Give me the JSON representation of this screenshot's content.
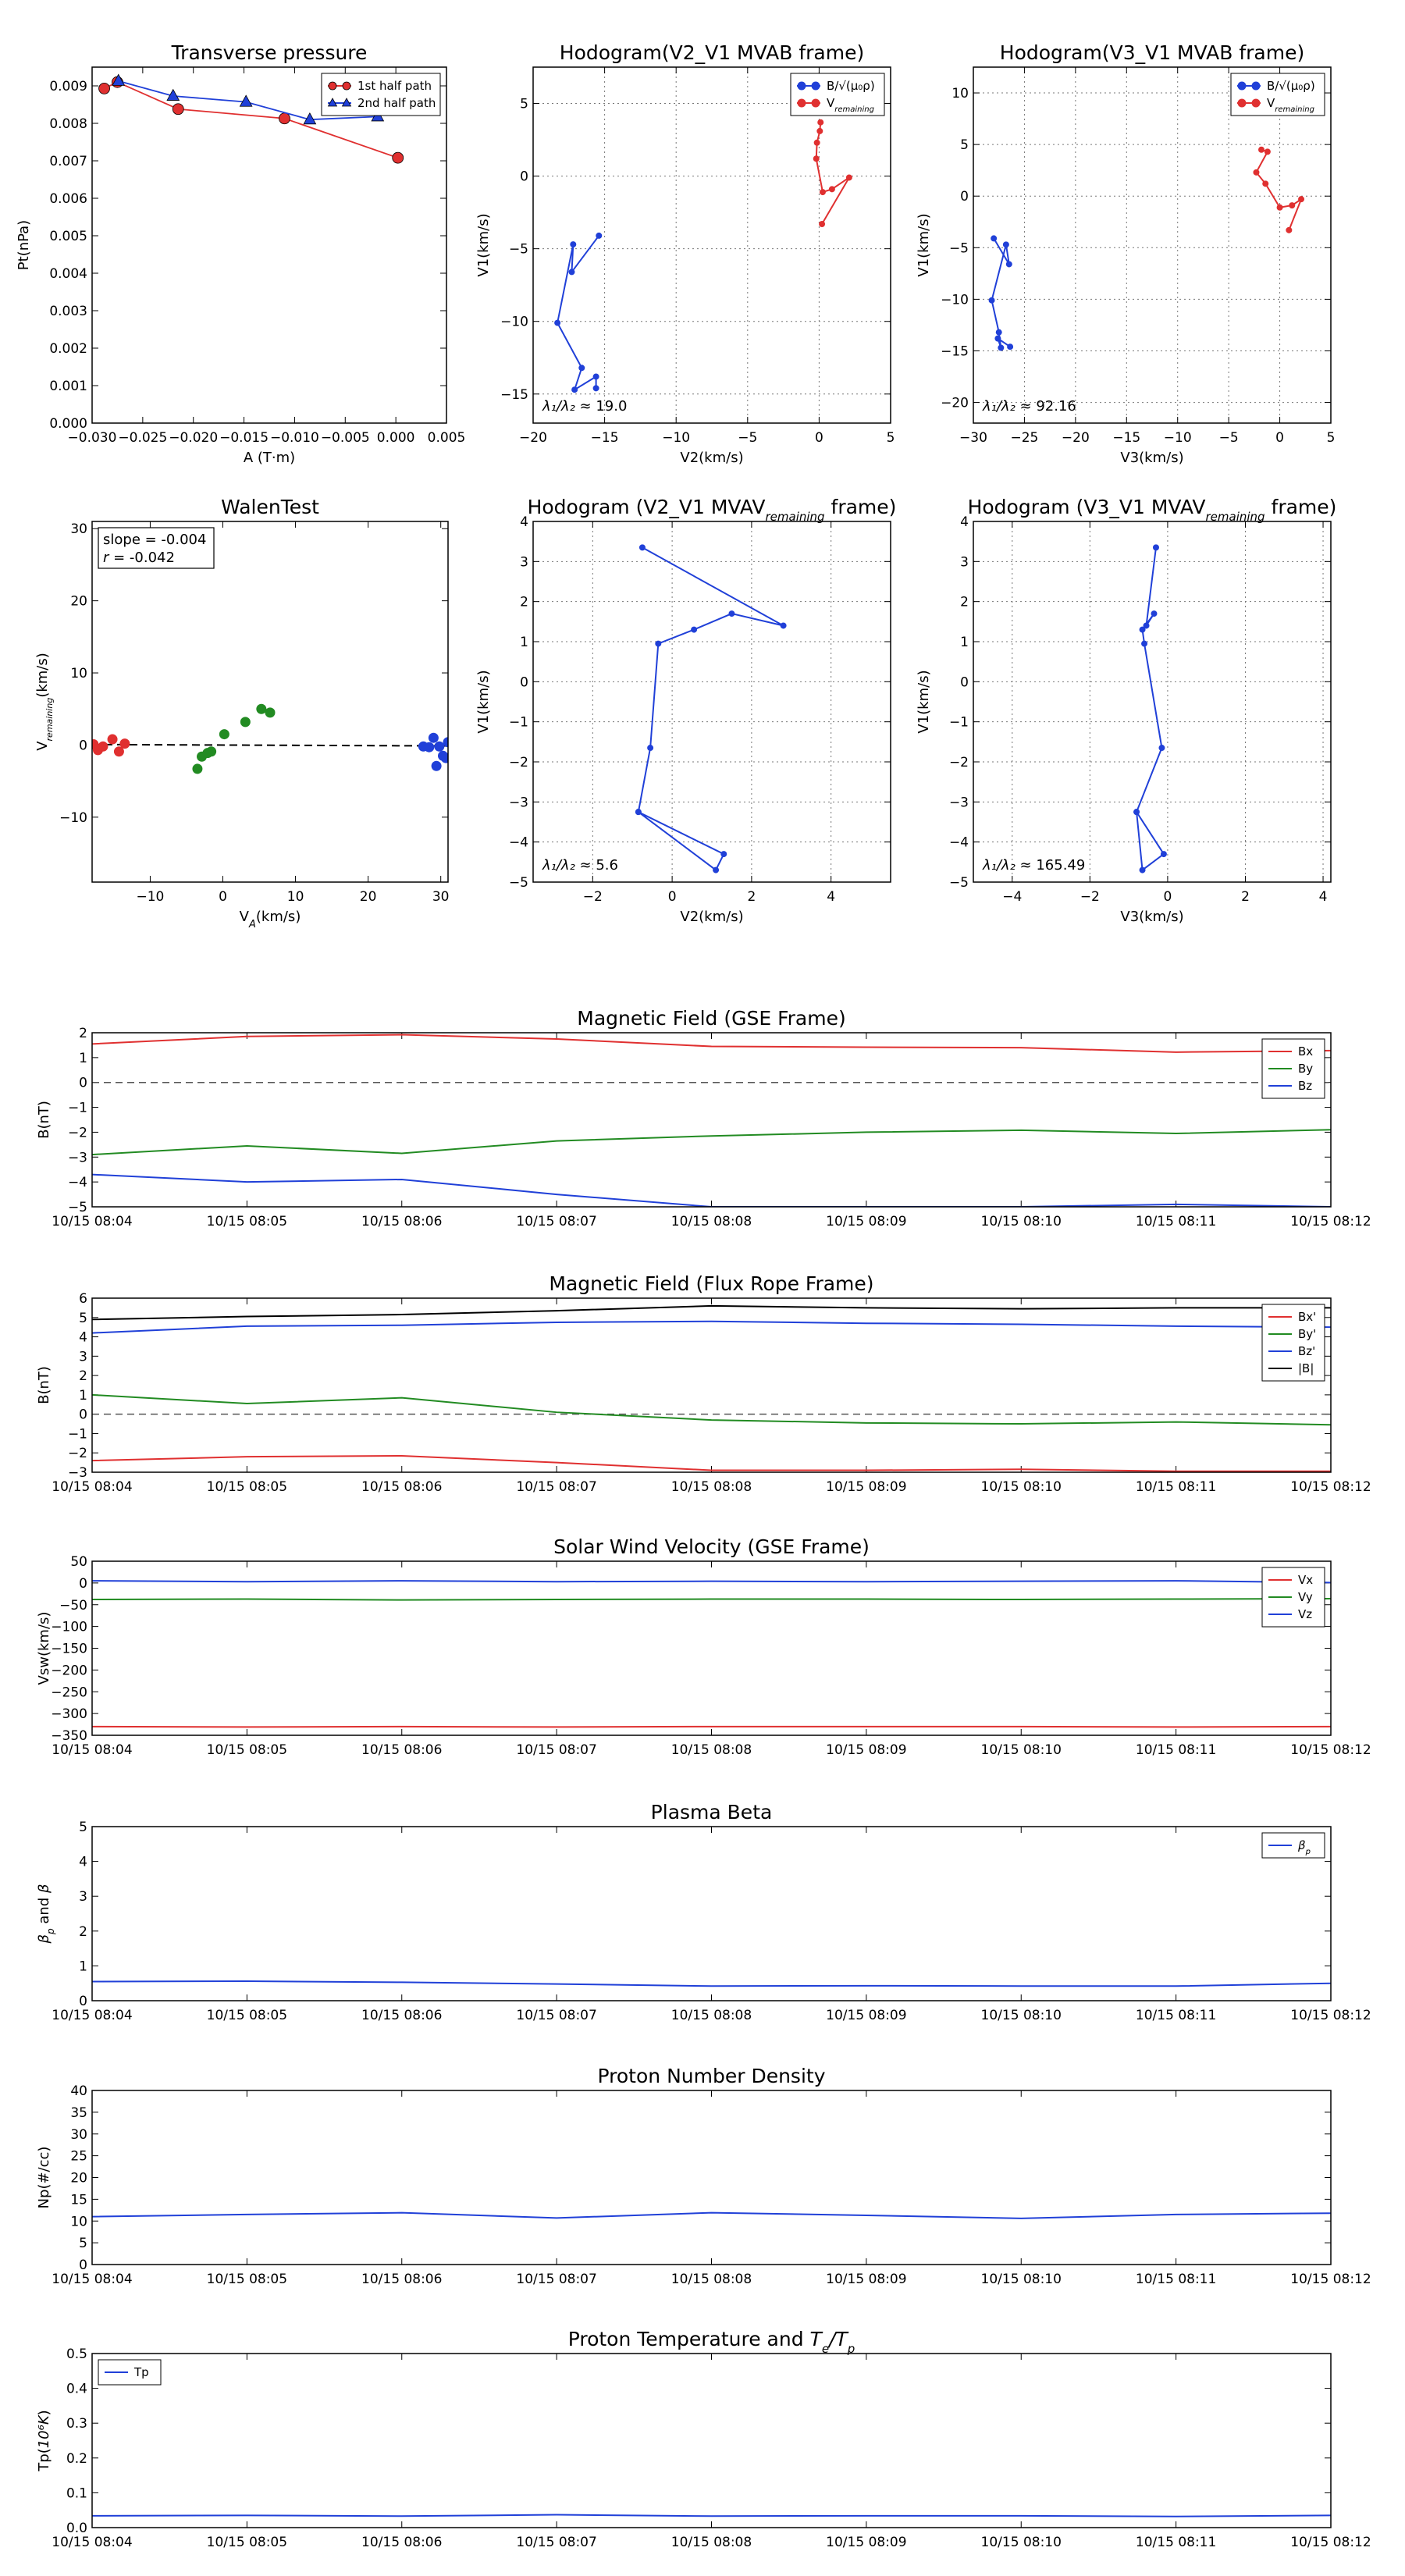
{
  "figure": {
    "background": "#ffffff"
  },
  "chart_data": [
    {
      "id": "tp",
      "type": "scatter",
      "title": "Transverse pressure",
      "xlabel": "A (T·m)",
      "ylabel": "Pt(nPa)",
      "xlim": [
        -0.03,
        0.005
      ],
      "ylim": [
        0,
        0.0095
      ],
      "xticks": [
        -0.03,
        -0.025,
        -0.02,
        -0.015,
        -0.01,
        -0.005,
        0.0,
        0.005
      ],
      "xticklabels": [
        "−0.030",
        "−0.025",
        "−0.020",
        "−0.015",
        "−0.010",
        "−0.005",
        "0.000",
        "0.005"
      ],
      "yticks": [
        0,
        0.001,
        0.002,
        0.003,
        0.004,
        0.005,
        0.006,
        0.007,
        0.008,
        0.009
      ],
      "yticklabels": [
        "0.000",
        "0.001",
        "0.002",
        "0.003",
        "0.004",
        "0.005",
        "0.006",
        "0.007",
        "0.008",
        "0.009"
      ],
      "grid": false,
      "legend": "top-right",
      "series": [
        {
          "name": "1st half path",
          "color": "#e03030",
          "marker": "circle",
          "x": [
            -0.0288,
            -0.0275,
            -0.0215,
            -0.011,
            0.0002
          ],
          "y": [
            0.00893,
            0.0091,
            0.00838,
            0.00813,
            0.00708
          ]
        },
        {
          "name": "2nd half path",
          "color": "#2040d8",
          "marker": "triangle",
          "x": [
            -0.0274,
            -0.022,
            -0.0148,
            -0.0085,
            -0.0018
          ],
          "y": [
            0.00913,
            0.00873,
            0.00857,
            0.0081,
            0.00818
          ]
        }
      ]
    },
    {
      "id": "hg1",
      "type": "line",
      "title": "Hodogram(V2_V1 MVAB frame)",
      "xlabel": "V2(km/s)",
      "ylabel": "V1(km/s)",
      "xlim": [
        -20,
        5
      ],
      "ylim": [
        -17,
        7.5
      ],
      "xticks": [
        -20,
        -15,
        -10,
        -5,
        0,
        5
      ],
      "xticklabels": [
        "−20",
        "−15",
        "−10",
        "−5",
        "0",
        "5"
      ],
      "yticks": [
        -15,
        -10,
        -5,
        0,
        5
      ],
      "yticklabels": [
        "−15",
        "−10",
        "−5",
        "0",
        "5"
      ],
      "grid": true,
      "legend": "top-right",
      "annotation": "λ₁/λ₂ ≈ 19.0",
      "series": [
        {
          "name": "B/√(μ₀ρ)",
          "color": "#2040d8",
          "x": [
            -15.4,
            -17.3,
            -17.2,
            -18.3,
            -16.6,
            -17.1,
            -15.6,
            -15.6
          ],
          "y": [
            -4.1,
            -6.6,
            -4.7,
            -10.1,
            -13.2,
            -14.7,
            -13.8,
            -14.6
          ]
        },
        {
          "name": "V_remaining",
          "color": "#e03030",
          "x": [
            0.1,
            0.05,
            -0.15,
            -0.2,
            0.25,
            0.9,
            2.1,
            0.2
          ],
          "y": [
            3.7,
            3.1,
            2.3,
            1.2,
            -1.1,
            -0.9,
            -0.1,
            -3.3
          ]
        }
      ]
    },
    {
      "id": "hg2",
      "type": "line",
      "title": "Hodogram(V3_V1 MVAB frame)",
      "xlabel": "V3(km/s)",
      "ylabel": "V1(km/s)",
      "xlim": [
        -30,
        5
      ],
      "ylim": [
        -22,
        12.5
      ],
      "xticks": [
        -30,
        -25,
        -20,
        -15,
        -10,
        -5,
        0,
        5
      ],
      "xticklabels": [
        "−30",
        "−25",
        "−20",
        "−15",
        "−10",
        "−5",
        "0",
        "5"
      ],
      "yticks": [
        -20,
        -15,
        -10,
        -5,
        0,
        5,
        10
      ],
      "yticklabels": [
        "−20",
        "−15",
        "−10",
        "−5",
        "0",
        "5",
        "10"
      ],
      "grid": true,
      "legend": "top-right",
      "annotation": "λ₁/λ₂ ≈ 92.16",
      "series": [
        {
          "name": "B/√(μ₀ρ)",
          "color": "#2040d8",
          "x": [
            -28.0,
            -26.5,
            -26.8,
            -28.2,
            -27.5,
            -27.3,
            -27.6,
            -26.4
          ],
          "y": [
            -4.1,
            -6.6,
            -4.7,
            -10.1,
            -13.2,
            -14.7,
            -13.8,
            -14.6
          ]
        },
        {
          "name": "V_remaining",
          "color": "#e03030",
          "x": [
            -1.8,
            -1.2,
            -2.3,
            -1.4,
            0.0,
            1.2,
            2.1,
            0.9
          ],
          "y": [
            4.5,
            4.3,
            2.3,
            1.2,
            -1.1,
            -0.9,
            -0.3,
            -3.3
          ]
        }
      ]
    },
    {
      "id": "walen",
      "type": "scatter",
      "title": "WalenTest",
      "xlabel": "V_A(km/s)",
      "ylabel": "V_remaining(km/s)",
      "xlim": [
        -18,
        31
      ],
      "ylim": [
        -19,
        31
      ],
      "xticks": [
        -10,
        0,
        10,
        20,
        30
      ],
      "xticklabels": [
        "−10",
        "0",
        "10",
        "20",
        "30"
      ],
      "yticks": [
        -10,
        0,
        10,
        20,
        30
      ],
      "yticklabels": [
        "−10",
        "0",
        "10",
        "20",
        "30"
      ],
      "grid": false,
      "annotation": [
        "slope = -0.004",
        "r = -0.042"
      ],
      "fit": {
        "slope": -0.004,
        "intercept": 0
      },
      "series": [
        {
          "color": "#e03030",
          "x": [
            -17.8,
            -17.2,
            -16.5,
            -15.2,
            -14.3,
            -13.5
          ],
          "y": [
            0.1,
            -0.7,
            -0.2,
            0.8,
            -0.9,
            0.2
          ]
        },
        {
          "color": "#228b22",
          "x": [
            -3.5,
            -2.9,
            -2.1,
            -1.6,
            0.2,
            3.1,
            5.3,
            6.5
          ],
          "y": [
            -3.3,
            -1.6,
            -1.1,
            -0.9,
            1.5,
            3.2,
            5.0,
            4.5
          ]
        },
        {
          "color": "#2040d8",
          "x": [
            27.6,
            28.4,
            29.0,
            29.4,
            29.8,
            30.3,
            30.7,
            31.0
          ],
          "y": [
            -0.2,
            -0.3,
            1.0,
            -2.9,
            -0.2,
            -1.5,
            -1.8,
            0.4
          ]
        }
      ]
    },
    {
      "id": "hg3",
      "type": "line",
      "title": "Hodogram (V2_V1 MVAV_remaining frame)",
      "xlabel": "V2(km/s)",
      "ylabel": "V1(km/s)",
      "xlim": [
        -3.5,
        5.5
      ],
      "ylim": [
        -5,
        4
      ],
      "xticks": [
        -2,
        0,
        2,
        4
      ],
      "xticklabels": [
        "−2",
        "0",
        "2",
        "4"
      ],
      "yticks": [
        -5,
        -4,
        -3,
        -2,
        -1,
        0,
        1,
        2,
        3,
        4
      ],
      "yticklabels": [
        "−5",
        "−4",
        "−3",
        "−2",
        "−1",
        "0",
        "1",
        "2",
        "3",
        "4"
      ],
      "grid": true,
      "annotation": "λ₁/λ₂ ≈ 5.6",
      "series": [
        {
          "color": "#2040d8",
          "x": [
            -0.75,
            2.8,
            1.5,
            0.55,
            -0.35,
            -0.55,
            -0.85,
            1.3,
            1.1,
            -0.85
          ],
          "y": [
            3.35,
            1.4,
            1.7,
            1.3,
            0.95,
            -1.65,
            -3.25,
            -4.3,
            -4.7,
            -3.25
          ]
        }
      ]
    },
    {
      "id": "hg4",
      "type": "line",
      "title": "Hodogram (V3_V1 MVAV_remaining frame)",
      "xlabel": "V3(km/s)",
      "ylabel": "V1(km/s)",
      "xlim": [
        -5,
        4.2
      ],
      "ylim": [
        -5,
        4
      ],
      "xticks": [
        -4,
        -2,
        0,
        2,
        4
      ],
      "xticklabels": [
        "−4",
        "−2",
        "0",
        "2",
        "4"
      ],
      "yticks": [
        -5,
        -4,
        -3,
        -2,
        -1,
        0,
        1,
        2,
        3,
        4
      ],
      "yticklabels": [
        "−5",
        "−4",
        "−3",
        "−2",
        "−1",
        "0",
        "1",
        "2",
        "3",
        "4"
      ],
      "grid": true,
      "annotation": "λ₁/λ₂ ≈ 165.49",
      "series": [
        {
          "color": "#2040d8",
          "x": [
            -0.3,
            -0.55,
            -0.35,
            -0.65,
            -0.6,
            -0.15,
            -0.8,
            -0.65,
            -0.1,
            -0.8
          ],
          "y": [
            3.35,
            1.4,
            1.7,
            1.3,
            0.95,
            -1.65,
            -3.25,
            -4.7,
            -4.3,
            -3.25
          ]
        }
      ]
    },
    {
      "id": "bgse",
      "type": "line",
      "title": "Magnetic Field (GSE Frame)",
      "ylabel": "B(nT)",
      "ylim": [
        -5,
        2
      ],
      "yticks": [
        -5,
        -4,
        -3,
        -2,
        -1,
        0,
        1,
        2
      ],
      "yticklabels": [
        "−5",
        "−4",
        "−3",
        "−2",
        "−1",
        "0",
        "1",
        "2"
      ],
      "zero_line": true,
      "legend": "top-right",
      "series": [
        {
          "name": "Bx",
          "color": "#e03030",
          "values": [
            1.55,
            1.85,
            1.92,
            1.75,
            1.45,
            1.42,
            1.4,
            1.22,
            1.28
          ]
        },
        {
          "name": "By",
          "color": "#228b22",
          "values": [
            -2.9,
            -2.55,
            -2.85,
            -2.35,
            -2.15,
            -2.0,
            -1.92,
            -2.05,
            -1.9
          ]
        },
        {
          "name": "Bz",
          "color": "#2040d8",
          "values": [
            -3.7,
            -4.0,
            -3.9,
            -4.5,
            -5.0,
            -5.0,
            -5.0,
            -4.9,
            -5.0
          ]
        }
      ]
    },
    {
      "id": "bfr",
      "type": "line",
      "title": "Magnetic Field (Flux Rope Frame)",
      "ylabel": "B(nT)",
      "ylim": [
        -3,
        6
      ],
      "yticks": [
        -3,
        -2,
        -1,
        0,
        1,
        2,
        3,
        4,
        5,
        6
      ],
      "yticklabels": [
        "−3",
        "−2",
        "−1",
        "0",
        "1",
        "2",
        "3",
        "4",
        "5",
        "6"
      ],
      "zero_line": true,
      "legend": "top-right",
      "series": [
        {
          "name": "Bx'",
          "color": "#e03030",
          "values": [
            -2.4,
            -2.2,
            -2.15,
            -2.5,
            -2.9,
            -2.9,
            -2.85,
            -2.95,
            -2.95
          ]
        },
        {
          "name": "By'",
          "color": "#228b22",
          "values": [
            1.0,
            0.55,
            0.85,
            0.1,
            -0.3,
            -0.45,
            -0.5,
            -0.4,
            -0.55
          ]
        },
        {
          "name": "Bz'",
          "color": "#2040d8",
          "values": [
            4.2,
            4.55,
            4.6,
            4.75,
            4.8,
            4.7,
            4.65,
            4.55,
            4.5
          ]
        },
        {
          "name": "|B|",
          "color": "#000000",
          "values": [
            4.9,
            5.05,
            5.15,
            5.35,
            5.6,
            5.5,
            5.45,
            5.5,
            5.5
          ]
        }
      ]
    },
    {
      "id": "vsw",
      "type": "line",
      "title": "Solar Wind Velocity (GSE Frame)",
      "ylabel": "Vsw(km/s)",
      "ylim": [
        -350,
        50
      ],
      "yticks": [
        -350,
        -300,
        -250,
        -200,
        -150,
        -100,
        -50,
        0,
        50
      ],
      "yticklabels": [
        "−350",
        "−300",
        "−250",
        "−200",
        "−150",
        "−100",
        "−50",
        "0",
        "50"
      ],
      "legend": "top-right",
      "series": [
        {
          "name": "Vx",
          "color": "#e03030",
          "values": [
            -330,
            -331,
            -330,
            -331,
            -330,
            -330,
            -330,
            -331,
            -330
          ]
        },
        {
          "name": "Vy",
          "color": "#228b22",
          "values": [
            -38,
            -37,
            -39,
            -38,
            -37,
            -37,
            -38,
            -37,
            -36
          ]
        },
        {
          "name": "Vz",
          "color": "#2040d8",
          "values": [
            5,
            3,
            5,
            3,
            4,
            3,
            4,
            5,
            1
          ]
        }
      ]
    },
    {
      "id": "beta",
      "type": "line",
      "title": "Plasma Beta",
      "ylabel": "β_p and β",
      "ylim": [
        0,
        5
      ],
      "yticks": [
        0,
        1,
        2,
        3,
        4,
        5
      ],
      "yticklabels": [
        "0",
        "1",
        "2",
        "3",
        "4",
        "5"
      ],
      "legend": "top-right",
      "series": [
        {
          "name": "β_p",
          "color": "#2040d8",
          "values": [
            0.55,
            0.56,
            0.53,
            0.48,
            0.42,
            0.43,
            0.42,
            0.42,
            0.5
          ]
        }
      ]
    },
    {
      "id": "np",
      "type": "line",
      "title": "Proton Number Density",
      "ylabel": "Np(#/cc)",
      "ylim": [
        0,
        40
      ],
      "yticks": [
        0,
        5,
        10,
        15,
        20,
        25,
        30,
        35,
        40
      ],
      "yticklabels": [
        "0",
        "5",
        "10",
        "15",
        "20",
        "25",
        "30",
        "35",
        "40"
      ],
      "series": [
        {
          "color": "#2040d8",
          "values": [
            11.0,
            11.5,
            11.9,
            10.7,
            11.9,
            11.3,
            10.6,
            11.5,
            11.8
          ]
        }
      ]
    },
    {
      "id": "tpt",
      "type": "line",
      "title": "Proton Temperature and T_e/T_p",
      "ylabel": "Tp(10⁶K)",
      "ylim": [
        0,
        0.5
      ],
      "yticks": [
        0,
        0.1,
        0.2,
        0.3,
        0.4,
        0.5
      ],
      "yticklabels": [
        "0.0",
        "0.1",
        "0.2",
        "0.3",
        "0.4",
        "0.5"
      ],
      "legend": "top-left",
      "series": [
        {
          "name": "Tp",
          "color": "#2040d8",
          "values": [
            0.034,
            0.035,
            0.033,
            0.037,
            0.033,
            0.034,
            0.034,
            0.032,
            0.035
          ]
        }
      ]
    }
  ],
  "time_axis": {
    "labels": [
      "10/15 08:04",
      "10/15 08:05",
      "10/15 08:06",
      "10/15 08:07",
      "10/15 08:08",
      "10/15 08:09",
      "10/15 08:10",
      "10/15 08:11",
      "10/15 08:12"
    ]
  }
}
